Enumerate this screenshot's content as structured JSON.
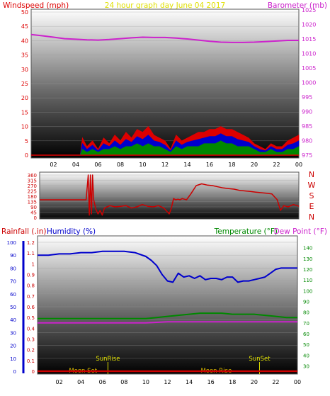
{
  "colors": {
    "windspeed": "#dd0000",
    "gust_green": "#008800",
    "wind_blue": "#0000cc",
    "barometer": "#cc22cc",
    "title": "#e0e000",
    "direction": "#cc0000",
    "rainfall": "#cc0000",
    "humidity": "#0000cc",
    "temperature": "#008800",
    "dewpoint": "#cc22cc",
    "moon": "#e0c000",
    "sun": "#e0e000"
  },
  "chart_data": [
    {
      "type": "line",
      "title": "24 hour graph day   June 04 2017",
      "left_label": "Windspeed (mph)",
      "right_label": "Barometer (mb)",
      "x_ticks": [
        "02",
        "04",
        "06",
        "08",
        "10",
        "12",
        "14",
        "16",
        "18",
        "20",
        "22",
        "00"
      ],
      "left_ticks": [
        0,
        5,
        10,
        15,
        20,
        25,
        30,
        35,
        40,
        45,
        50
      ],
      "right_ticks": [
        975,
        980,
        985,
        990,
        995,
        1000,
        1005,
        1010,
        1015,
        1020,
        1025
      ],
      "left_range": [
        0,
        50
      ],
      "right_range": [
        975,
        1025
      ],
      "x_range_hours": [
        0,
        24
      ],
      "barometer": {
        "hours": [
          0,
          1,
          2,
          3,
          4,
          5,
          6,
          7,
          8,
          9,
          10,
          11,
          12,
          13,
          14,
          15,
          16,
          17,
          18,
          19,
          20,
          21,
          22,
          23,
          24
        ],
        "values": [
          1016.5,
          1016.1,
          1015.6,
          1015.1,
          1014.9,
          1014.7,
          1014.6,
          1014.8,
          1015.1,
          1015.4,
          1015.6,
          1015.5,
          1015.5,
          1015.3,
          1015.0,
          1014.6,
          1014.2,
          1013.9,
          1013.8,
          1013.8,
          1013.9,
          1014.1,
          1014.3,
          1014.5,
          1014.5
        ]
      },
      "windspeed": {
        "hours": [
          0,
          4.4,
          4.6,
          5,
          5.5,
          6,
          6.5,
          7,
          7.5,
          8,
          8.5,
          9,
          9.5,
          10,
          10.5,
          11,
          11.5,
          12,
          12.5,
          13,
          13.5,
          14,
          14.5,
          15,
          15.5,
          16,
          16.5,
          17,
          17.5,
          18,
          18.5,
          19,
          19.5,
          20,
          20.5,
          21,
          21.5,
          22,
          22.5,
          23,
          23.5,
          24
        ],
        "values": [
          0,
          0,
          6,
          3,
          5,
          2,
          6,
          4,
          7,
          5,
          8,
          6,
          9,
          8,
          10,
          7,
          6,
          5,
          2,
          7,
          5,
          6,
          7,
          8,
          8,
          9,
          9,
          10,
          9,
          9,
          8,
          7,
          6,
          4,
          3,
          2,
          4,
          3,
          3,
          5,
          6,
          7
        ]
      },
      "avg_wind": {
        "hours": [
          0,
          4.4,
          4.6,
          5,
          5.5,
          6,
          6.5,
          7,
          7.5,
          8,
          8.5,
          9,
          9.5,
          10,
          10.5,
          11,
          11.5,
          12,
          12.5,
          13,
          13.5,
          14,
          14.5,
          15,
          15.5,
          16,
          16.5,
          17,
          17.5,
          18,
          18.5,
          19,
          19.5,
          20,
          20.5,
          21,
          21.5,
          22,
          22.5,
          23,
          23.5,
          24
        ],
        "values": [
          0,
          0,
          2,
          1,
          2,
          1,
          2,
          2,
          3,
          2,
          3,
          3,
          4,
          3,
          4,
          3,
          3,
          2,
          1,
          3,
          2,
          3,
          3,
          3,
          4,
          4,
          4,
          5,
          4,
          4,
          3,
          3,
          3,
          2,
          1,
          1,
          2,
          1,
          1,
          2,
          2,
          3
        ]
      }
    },
    {
      "type": "line",
      "direction_labels": [
        "N",
        "W",
        "S",
        "E",
        "N"
      ],
      "left_ticks": [
        0,
        45,
        90,
        135,
        180,
        225,
        270,
        315,
        360
      ],
      "left_range": [
        0,
        360
      ],
      "direction": {
        "hours": [
          0,
          4.3,
          4.5,
          4.6,
          4.7,
          4.8,
          4.9,
          5.0,
          5.2,
          5.4,
          5.6,
          5.8,
          6.0,
          6.5,
          7.0,
          7.5,
          8.0,
          8.5,
          9.0,
          9.5,
          10.0,
          10.5,
          11.0,
          11.5,
          12.0,
          12.2,
          12.4,
          12.6,
          12.8,
          13.0,
          13.2,
          13.4,
          13.6,
          14.0,
          14.5,
          15.0,
          15.5,
          16.0,
          16.5,
          17.0,
          17.5,
          18.0,
          18.5,
          19.0,
          19.5,
          20.0,
          20.5,
          21.0,
          21.5,
          22.0,
          22.3,
          22.6,
          23.0,
          23.5,
          24.0
        ],
        "values": [
          150,
          150,
          360,
          20,
          360,
          30,
          360,
          150,
          70,
          30,
          60,
          20,
          80,
          100,
          90,
          95,
          100,
          80,
          90,
          110,
          95,
          90,
          100,
          80,
          30,
          80,
          160,
          150,
          155,
          150,
          160,
          155,
          150,
          200,
          270,
          285,
          275,
          270,
          260,
          250,
          245,
          240,
          230,
          225,
          220,
          215,
          210,
          205,
          200,
          150,
          60,
          100,
          90,
          110,
          95
        ]
      }
    },
    {
      "type": "line",
      "rain_label": "Rainfall (.in)",
      "humidity_label": "Humidity (%)",
      "temperature_label": "Temperature (°F)",
      "dewpoint_label": "Dew Point (°F)",
      "rain_ticks": [
        "0",
        "0.1",
        "0.2",
        "0.3",
        "0.4",
        "0.5",
        "0.6",
        "0.7",
        "0.8",
        "0.9",
        "1",
        "1.1",
        "1.2"
      ],
      "humidity_ticks": [
        0,
        10,
        20,
        30,
        40,
        50,
        60,
        70,
        80,
        90,
        100
      ],
      "temp_ticks": [
        30,
        40,
        50,
        60,
        70,
        80,
        90,
        100,
        110,
        120,
        130,
        140
      ],
      "humidity_range": [
        0,
        100
      ],
      "temp_range": [
        25,
        145
      ],
      "rain_range": [
        0,
        1.2
      ],
      "annotations": [
        {
          "label": "Moon Set",
          "hour": 4.2,
          "color": "moon",
          "row": "low"
        },
        {
          "label": "SunRise",
          "hour": 6.5,
          "color": "sun",
          "row": "high"
        },
        {
          "label": "Moon Rise",
          "hour": 16.5,
          "color": "moon",
          "row": "low"
        },
        {
          "label": "SunSet",
          "hour": 20.5,
          "color": "sun",
          "row": "high"
        }
      ],
      "humidity": {
        "hours": [
          0,
          1,
          2,
          3,
          4,
          5,
          6,
          7,
          8,
          9,
          10,
          10.5,
          11,
          11.5,
          12,
          12.5,
          13,
          13.5,
          14,
          14.5,
          15,
          15.5,
          16,
          16.5,
          17,
          17.5,
          18,
          18.5,
          19,
          19.5,
          20,
          20.5,
          21,
          21.5,
          22,
          22.5,
          23,
          24
        ],
        "values": [
          90,
          90,
          91,
          91,
          92,
          92,
          93,
          93,
          93,
          92,
          89,
          86,
          82,
          75,
          70,
          69,
          76,
          73,
          74,
          72,
          74,
          71,
          72,
          72,
          71,
          73,
          73,
          69,
          70,
          70,
          71,
          72,
          73,
          76,
          79,
          80,
          80,
          80
        ]
      },
      "temperature": {
        "hours": [
          0,
          2,
          4,
          6,
          8,
          10,
          11,
          12,
          13,
          14,
          15,
          16,
          17,
          18,
          19,
          20,
          21,
          22,
          23,
          24
        ],
        "values": [
          74,
          74,
          74,
          74,
          74,
          74,
          75,
          76,
          77,
          78,
          79,
          79,
          79,
          78,
          78,
          78,
          77,
          76,
          75,
          75
        ]
      },
      "dewpoint": {
        "hours": [
          0,
          2,
          4,
          6,
          8,
          10,
          12,
          14,
          16,
          18,
          20,
          22,
          24
        ],
        "values": [
          70,
          70,
          70,
          70,
          70,
          70,
          71,
          71,
          71,
          71,
          71,
          71,
          71
        ]
      },
      "rainfall": {
        "hours": [
          0,
          24
        ],
        "values": [
          0,
          0
        ]
      }
    }
  ]
}
